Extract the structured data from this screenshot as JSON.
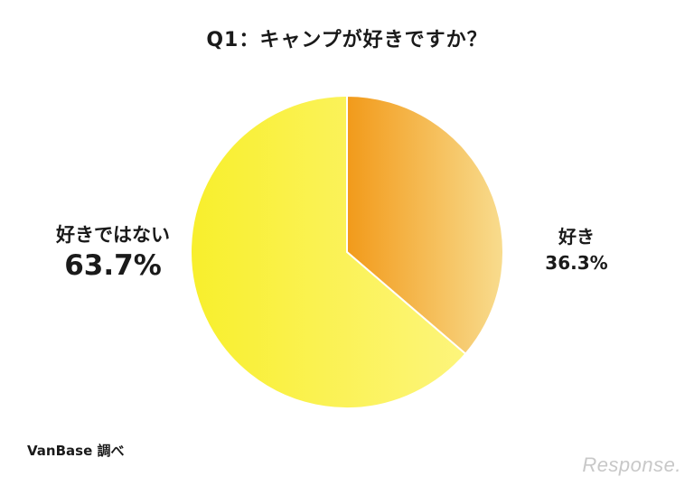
{
  "chart_data": {
    "type": "pie",
    "title": "Q1：キャンプが好きですか？",
    "categories": [
      "好き",
      "好きではない"
    ],
    "values": [
      36.3,
      63.7
    ],
    "value_labels": [
      "36.3%",
      "63.7%"
    ],
    "colors": [
      "#f29a1a",
      "#fbf24a"
    ],
    "start": "12 o'clock",
    "direction": "clockwise"
  },
  "source": "VanBase 調べ",
  "watermark": "Response."
}
